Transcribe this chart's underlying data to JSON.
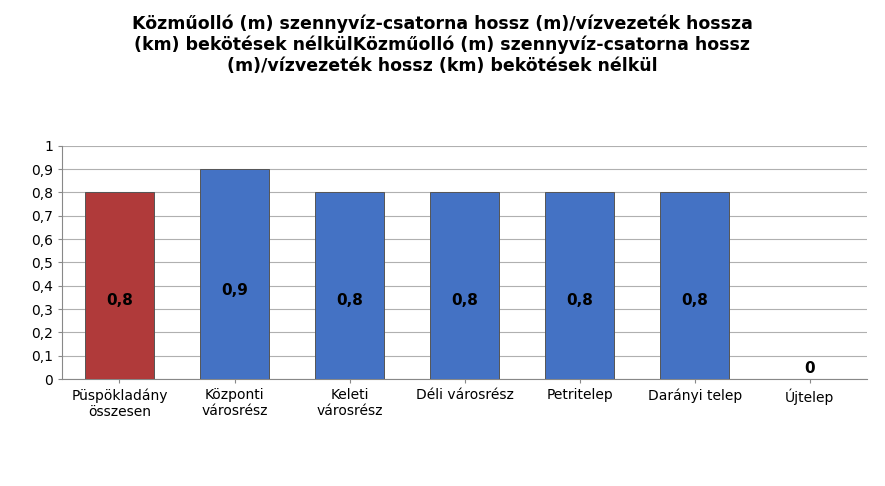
{
  "categories": [
    "Püspökladány\nösszesen",
    "Központi\nvárosrész",
    "Keleti\nvárosrész",
    "Déli városrész",
    "Petritelep",
    "Darányi telep",
    "Újtelep"
  ],
  "values": [
    0.8,
    0.9,
    0.8,
    0.8,
    0.8,
    0.8,
    0.0
  ],
  "bar_colors": [
    "#b03a3a",
    "#4472c4",
    "#4472c4",
    "#4472c4",
    "#4472c4",
    "#4472c4",
    "#4472c4"
  ],
  "title": "Közműolló (m) szennyvíz-csatorna hossz (m)/vízvezeték hossza\n(km) bekötések nélkülKözműolló (m) szennyvíz-csatorna hossz\n(m)/vízvezeték hossz (km) bekötések nélkül",
  "ylabel": "",
  "xlabel": "",
  "ylim": [
    0,
    1.0
  ],
  "yticks": [
    0,
    0.1,
    0.2,
    0.3,
    0.4,
    0.5,
    0.6,
    0.7,
    0.8,
    0.9,
    1
  ],
  "ytick_labels": [
    "0",
    "0,1",
    "0,2",
    "0,3",
    "0,4",
    "0,5",
    "0,6",
    "0,7",
    "0,8",
    "0,9",
    "1"
  ],
  "title_fontsize": 12.5,
  "tick_fontsize": 10,
  "bar_label_fontsize": 11,
  "background_color": "#ffffff",
  "grid_color": "#b0b0b0"
}
